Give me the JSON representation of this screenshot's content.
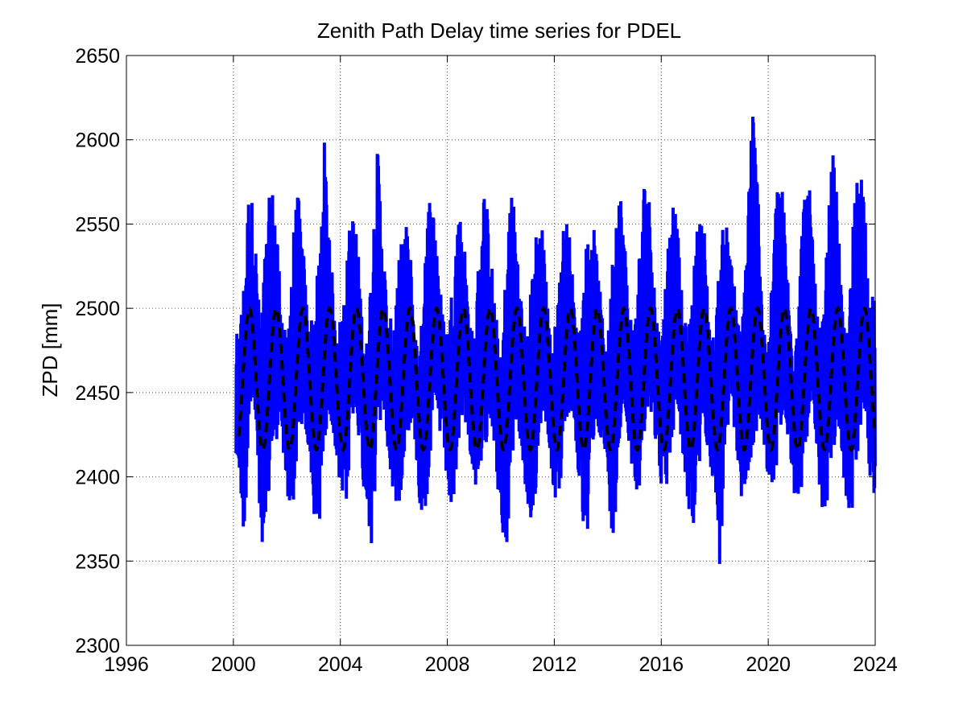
{
  "chart_data": {
    "type": "line",
    "title": "Zenith Path Delay time series for PDEL",
    "xlabel": "",
    "ylabel": "ZPD [mm]",
    "xlim": [
      1996,
      2024
    ],
    "ylim": [
      2300,
      2650
    ],
    "x_ticks": [
      "1996",
      "2000",
      "2004",
      "2008",
      "2012",
      "2016",
      "2020",
      "2024"
    ],
    "y_ticks": [
      "2300",
      "2350",
      "2400",
      "2450",
      "2500",
      "2550",
      "2600",
      "2650"
    ],
    "grid": true,
    "legend": "none",
    "series": [
      {
        "style": "solid",
        "color": "#0000ff",
        "x_start": 2000.1,
        "x_end": 2024.0,
        "approx_range": [
          2343,
          2630
        ],
        "x": [
          2000.2,
          2000.4,
          2000.6,
          2000.8,
          2001.0,
          2001.2,
          2001.4,
          2001.6,
          2001.8,
          2002.0,
          2002.2,
          2002.4,
          2002.6,
          2002.8,
          2003.0,
          2003.2,
          2003.4,
          2003.6,
          2003.8,
          2004.0,
          2004.2,
          2004.4,
          2004.6,
          2004.8,
          2005.0,
          2005.2,
          2005.4,
          2005.6,
          2005.8,
          2006.0,
          2006.2,
          2006.4,
          2006.6,
          2006.8,
          2007.0,
          2007.2,
          2007.4,
          2007.6,
          2007.8,
          2008.0,
          2008.2,
          2008.4,
          2008.6,
          2008.8,
          2009.0,
          2009.2,
          2009.4,
          2009.6,
          2009.8,
          2010.0,
          2010.2,
          2010.4,
          2010.6,
          2010.8,
          2011.0,
          2011.2,
          2011.4,
          2011.6,
          2011.8,
          2012.0,
          2012.2,
          2012.4,
          2012.6,
          2012.8,
          2013.0,
          2013.2,
          2013.4,
          2013.6,
          2013.8,
          2014.0,
          2014.2,
          2014.4,
          2014.6,
          2014.8,
          2015.0,
          2015.2,
          2015.4,
          2015.6,
          2015.8,
          2016.0,
          2016.2,
          2016.4,
          2016.6,
          2016.8,
          2017.0,
          2017.2,
          2017.4,
          2017.6,
          2017.8,
          2018.0,
          2018.2,
          2018.4,
          2018.6,
          2018.8,
          2019.0,
          2019.2,
          2019.4,
          2019.6,
          2019.8,
          2020.0,
          2020.2,
          2020.4,
          2020.6,
          2020.8,
          2021.0,
          2021.2,
          2021.4,
          2021.6,
          2021.8,
          2022.0,
          2022.2,
          2022.4,
          2022.6,
          2022.8,
          2023.0,
          2023.2,
          2023.4,
          2023.6,
          2023.8,
          2024.0
        ],
        "low": [
          2405,
          2360,
          2430,
          2435,
          2373,
          2343,
          2400,
          2420,
          2430,
          2380,
          2372,
          2420,
          2430,
          2415,
          2370,
          2367,
          2420,
          2440,
          2410,
          2390,
          2377,
          2420,
          2440,
          2400,
          2380,
          2352,
          2420,
          2440,
          2410,
          2385,
          2380,
          2415,
          2430,
          2420,
          2375,
          2380,
          2415,
          2430,
          2420,
          2395,
          2365,
          2415,
          2440,
          2420,
          2395,
          2388,
          2415,
          2435,
          2415,
          2362,
          2343,
          2405,
          2430,
          2415,
          2360,
          2365,
          2415,
          2440,
          2420,
          2385,
          2390,
          2420,
          2440,
          2420,
          2380,
          2352,
          2410,
          2430,
          2420,
          2395,
          2355,
          2410,
          2440,
          2420,
          2390,
          2395,
          2420,
          2440,
          2420,
          2395,
          2390,
          2420,
          2440,
          2410,
          2383,
          2365,
          2400,
          2430,
          2410,
          2390,
          2341,
          2410,
          2440,
          2420,
          2385,
          2390,
          2410,
          2430,
          2420,
          2400,
          2390,
          2420,
          2435,
          2410,
          2384,
          2385,
          2420,
          2430,
          2410,
          2372,
          2385,
          2400,
          2430,
          2400,
          2377,
          2380,
          2420,
          2440,
          2400,
          2381
        ],
        "high": [
          2485,
          2520,
          2578,
          2550,
          2490,
          2540,
          2577,
          2560,
          2500,
          2480,
          2540,
          2571,
          2540,
          2490,
          2500,
          2530,
          2600,
          2550,
          2490,
          2495,
          2520,
          2560,
          2550,
          2500,
          2480,
          2545,
          2598,
          2540,
          2490,
          2500,
          2530,
          2555,
          2540,
          2485,
          2480,
          2560,
          2572,
          2545,
          2500,
          2485,
          2520,
          2560,
          2550,
          2500,
          2480,
          2540,
          2576,
          2540,
          2500,
          2470,
          2530,
          2580,
          2540,
          2500,
          2485,
          2530,
          2555,
          2550,
          2490,
          2485,
          2525,
          2560,
          2540,
          2490,
          2495,
          2540,
          2560,
          2530,
          2495,
          2480,
          2540,
          2583,
          2550,
          2500,
          2490,
          2540,
          2585,
          2560,
          2500,
          2480,
          2530,
          2570,
          2550,
          2500,
          2485,
          2520,
          2560,
          2550,
          2495,
          2480,
          2540,
          2555,
          2545,
          2500,
          2485,
          2550,
          2629,
          2580,
          2500,
          2470,
          2545,
          2590,
          2560,
          2500,
          2480,
          2540,
          2580,
          2567,
          2500,
          2485,
          2540,
          2598,
          2560,
          2490,
          2490,
          2560,
          2596,
          2570,
          2500,
          2515
        ]
      },
      {
        "style": "dashed",
        "color": "#000000",
        "shape": "annual sinusoid",
        "x_start": 2000.2,
        "x_end": 2024.0,
        "min": 2416,
        "max": 2500,
        "period_years": 1.0,
        "peak_phase_years": 0.6
      }
    ]
  }
}
